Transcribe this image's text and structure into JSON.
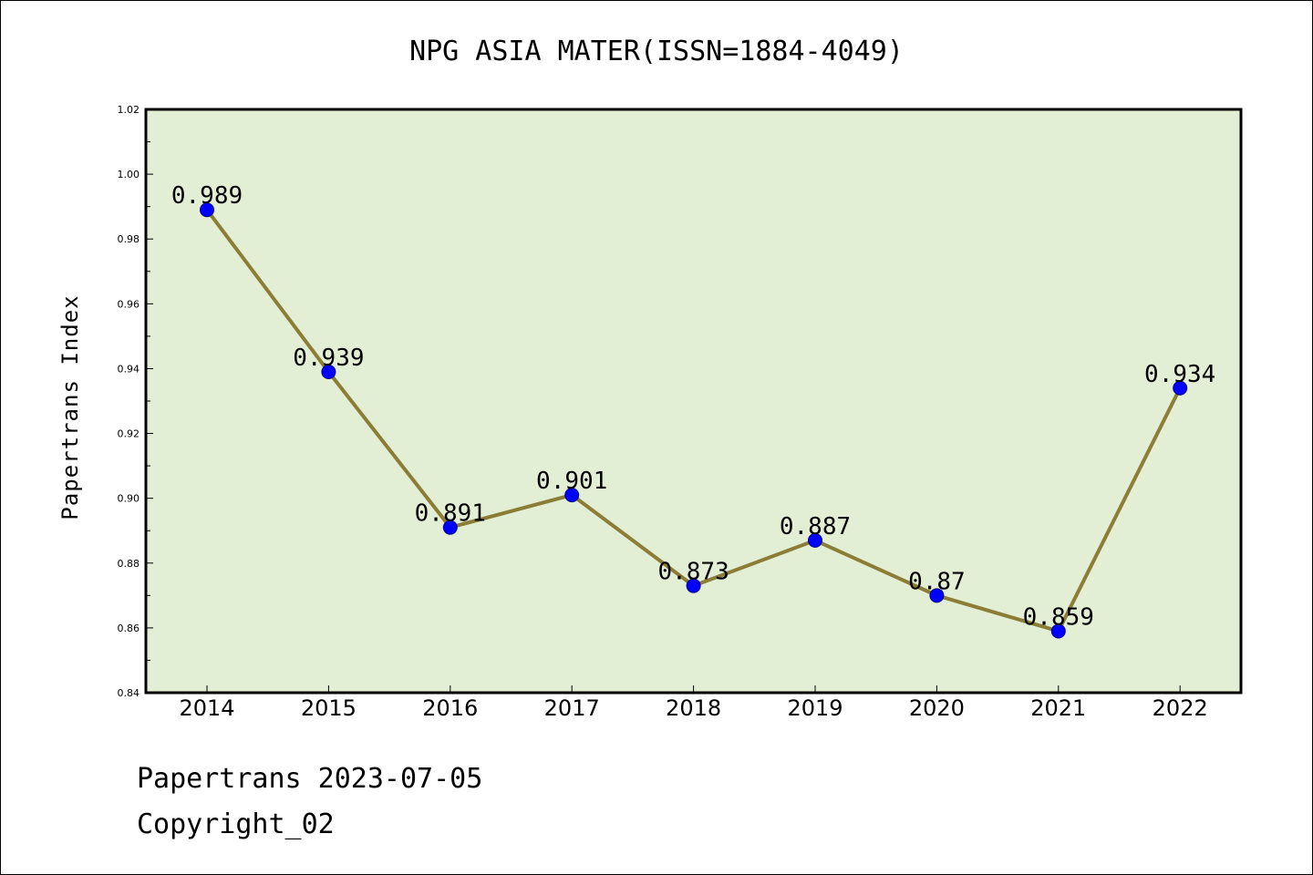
{
  "footer": {
    "watermark": "Papertrans 2023-07-05",
    "copyright": "Copyright_02"
  },
  "colors": {
    "plot_background": "#e2efd5",
    "line": "#8b7d35",
    "marker_fill": "#0000ff",
    "marker_edge": "#00008b",
    "frame": "#000000"
  },
  "chart_data": {
    "type": "line",
    "title": "NPG ASIA MATER(ISSN=1884-4049)",
    "xlabel": "",
    "ylabel": "Papertrans Index",
    "x": [
      "2014",
      "2015",
      "2016",
      "2017",
      "2018",
      "2019",
      "2020",
      "2021",
      "2022"
    ],
    "series": [
      {
        "values": [
          0.989,
          0.939,
          0.891,
          0.901,
          0.873,
          0.887,
          0.87,
          0.859,
          0.934
        ],
        "labels": [
          "0.989",
          "0.939",
          "0.891",
          "0.901",
          "0.873",
          "0.887",
          "0.87",
          "0.859",
          "0.934"
        ]
      }
    ],
    "ylim": [
      0.84,
      1.02
    ],
    "yticks": [
      "0.84",
      "0.86",
      "0.88",
      "0.90",
      "0.92",
      "0.94",
      "0.96",
      "0.98",
      "1.00",
      "1.02"
    ],
    "grid": false,
    "legend": "none"
  }
}
